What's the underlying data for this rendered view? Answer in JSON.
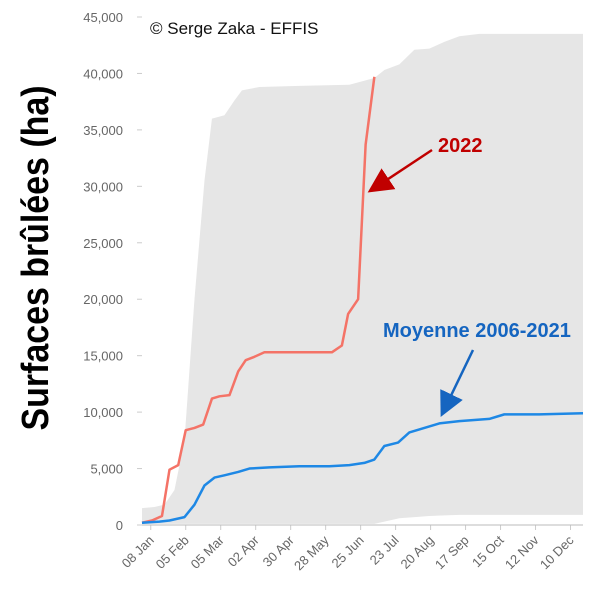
{
  "chart_data": {
    "type": "line",
    "ylabel": "Surfaces brûlées (ha)",
    "annotations": [
      "© Serge Zaka - EFFIS"
    ],
    "xlim": [
      1,
      354
    ],
    "ylim": [
      0,
      45000
    ],
    "xticks": [
      {
        "value": 8,
        "label": "08 Jan"
      },
      {
        "value": 36,
        "label": "05 Feb"
      },
      {
        "value": 64,
        "label": "05 Mar"
      },
      {
        "value": 92,
        "label": "02 Apr"
      },
      {
        "value": 120,
        "label": "30 Apr"
      },
      {
        "value": 148,
        "label": "28 May"
      },
      {
        "value": 176,
        "label": "25 Jun"
      },
      {
        "value": 204,
        "label": "23 Jul"
      },
      {
        "value": 232,
        "label": "20 Aug"
      },
      {
        "value": 260,
        "label": "17 Sep"
      },
      {
        "value": 288,
        "label": "15 Oct"
      },
      {
        "value": 316,
        "label": "12 Nov"
      },
      {
        "value": 344,
        "label": "10 Dec"
      }
    ],
    "yticks": [
      0,
      {
        "value": 5000,
        "label": "5,000"
      },
      {
        "value": 10000,
        "label": "10,000"
      },
      {
        "value": 15000,
        "label": "15,000"
      },
      {
        "value": 20000,
        "label": "20,000"
      },
      {
        "value": 25000,
        "label": "25,000"
      },
      {
        "value": 30000,
        "label": "30,000"
      },
      {
        "value": 35000,
        "label": "35,000"
      },
      {
        "value": 40000,
        "label": "40,000"
      },
      {
        "value": 45000,
        "label": "45,000"
      }
    ],
    "band": {
      "color": "#e6e6e6",
      "x": [
        1,
        11,
        19,
        27,
        35,
        43,
        51,
        57,
        67,
        75,
        81,
        95,
        127,
        167,
        187,
        195,
        207,
        219,
        231,
        243,
        255,
        271,
        354
      ],
      "upper": [
        1500,
        1600,
        1800,
        3100,
        7500,
        20000,
        30500,
        36000,
        36300,
        37600,
        38500,
        38800,
        38900,
        39000,
        39600,
        40300,
        40800,
        42100,
        42200,
        42800,
        43300,
        43500,
        43500
      ],
      "lower": [
        100,
        100,
        100,
        100,
        100,
        100,
        100,
        100,
        100,
        100,
        100,
        100,
        100,
        100,
        100,
        300,
        600,
        700,
        800,
        850,
        900,
        900,
        900
      ]
    },
    "series": [
      {
        "name": "2022",
        "color": "#f47367",
        "label_color": "#c00000",
        "x": [
          1,
          9,
          17,
          23,
          30,
          36,
          43,
          50,
          57,
          63,
          71,
          78,
          84,
          91,
          99,
          119,
          153,
          161,
          166,
          174,
          180,
          187
        ],
        "values": [
          200,
          400,
          800,
          4900,
          5300,
          8400,
          8600,
          8900,
          11200,
          11400,
          11500,
          13600,
          14600,
          14900,
          15300,
          15300,
          15300,
          15900,
          18700,
          20000,
          33700,
          39700
        ]
      },
      {
        "name": "Moyenne 2006-2021",
        "color": "#1e88e5",
        "label_color": "#1565c0",
        "x": [
          1,
          15,
          23,
          35,
          43,
          51,
          59,
          67,
          78,
          87,
          103,
          127,
          151,
          167,
          179,
          187,
          195,
          206,
          215,
          227,
          239,
          255,
          279,
          291,
          319,
          354
        ],
        "values": [
          200,
          300,
          400,
          700,
          1800,
          3500,
          4200,
          4400,
          4700,
          5000,
          5100,
          5200,
          5200,
          5300,
          5500,
          5800,
          7000,
          7300,
          8200,
          8600,
          9000,
          9200,
          9400,
          9800,
          9800,
          9900
        ]
      }
    ]
  }
}
